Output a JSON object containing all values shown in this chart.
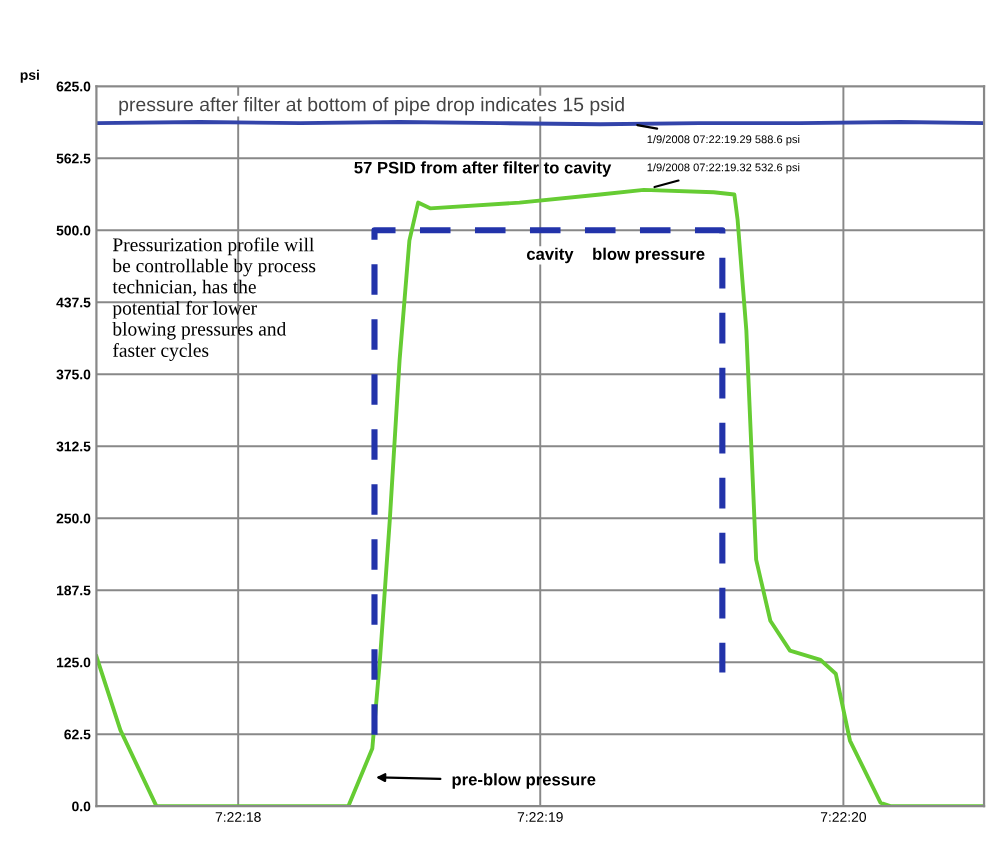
{
  "chart_data": {
    "type": "line",
    "ylabel": "psi",
    "xlim": [
      7.371537,
      7.372351
    ],
    "ylim": [
      0,
      625
    ],
    "xticks": [
      {
        "value": 7.371667,
        "label": "7:22:18"
      },
      {
        "value": 7.371944,
        "label": "7:22:19"
      },
      {
        "value": 7.372222,
        "label": "7:22:20"
      }
    ],
    "yticks": [
      {
        "value": 0,
        "label": "0.0"
      },
      {
        "value": 62.5,
        "label": "62.5"
      },
      {
        "value": 125,
        "label": "125.0"
      },
      {
        "value": 187.5,
        "label": "187.5"
      },
      {
        "value": 250,
        "label": "250.0"
      },
      {
        "value": 312.5,
        "label": "312.5"
      },
      {
        "value": 375,
        "label": "375.0"
      },
      {
        "value": 437.5,
        "label": "437.5"
      },
      {
        "value": 500,
        "label": "500.0"
      },
      {
        "value": 562.5,
        "label": "562.5"
      },
      {
        "value": 625,
        "label": "625.0"
      }
    ],
    "grid": true,
    "legend": false,
    "marker": "none",
    "series": [
      {
        "color": "#3344aa",
        "line_style": "solid",
        "x": [
          7.371537,
          7.371632,
          7.371724,
          7.371815,
          7.371907,
          7.371999,
          7.37209,
          7.372182,
          7.372274,
          7.372351
        ],
        "values": [
          593,
          594,
          593,
          594,
          593,
          592,
          593,
          593,
          594,
          593
        ]
      },
      {
        "color": "#66cc33",
        "line_style": "solid",
        "x": [
          7.371537,
          7.371559,
          7.371592,
          7.371768,
          7.37179,
          7.371797,
          7.371806,
          7.371815,
          7.371824,
          7.371832,
          7.371843,
          7.371925,
          7.371999,
          7.372039,
          7.372103,
          7.372122,
          7.372125,
          7.372133,
          7.372142,
          7.372155,
          7.372173,
          7.372201,
          7.372215,
          7.372228,
          7.372256,
          7.372265,
          7.372351
        ],
        "values": [
          130,
          66,
          0,
          0,
          50,
          127,
          248,
          387,
          491,
          524,
          519,
          524,
          531,
          535,
          533,
          531,
          509,
          413,
          214,
          161,
          135,
          127,
          115,
          57,
          3,
          0,
          0
        ]
      },
      {
        "color": "#2233aa",
        "line_style": "dashed",
        "x": [
          7.371792,
          7.371792,
          7.372111,
          7.372111
        ],
        "values": [
          62,
          500,
          500,
          116
        ]
      }
    ],
    "annotations": [
      "pressure after filter at bottom of pipe drop indicates 15 psid",
      "57 PSID from after filter to cavity",
      "cavity    blow pressure",
      "Pressurization profile will\nbe controllable by process\ntechnician, has the\npotential for lower\nblowing pressures and\nfaster cycles",
      {
        "text": "1/9/2008 07:22:19.29 588.6 psi",
        "x": 7.372023,
        "y": 593
      },
      {
        "text": "1/9/2008 07:22:19.32 532.6 psi",
        "x": 7.372039,
        "y": 535
      },
      "pre-blow pressure"
    ]
  }
}
